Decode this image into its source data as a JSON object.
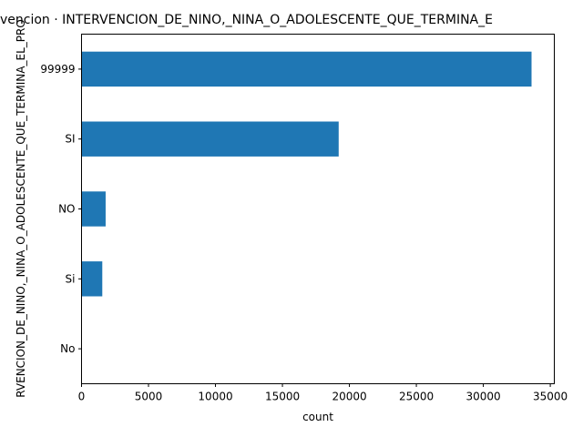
{
  "chart_data": {
    "type": "bar",
    "orientation": "horizontal",
    "title": "vencion · INTERVENCION_DE_NINO,_NINA_O_ADOLESCENTE_QUE_TERMINA_E",
    "xlabel": "count",
    "ylabel": "RVENCION_DE_NINO,_NINA_O_ADOLESCENTE_QUE_TERMINA_EL_PRO",
    "categories": [
      "99999",
      "SI",
      "NO",
      "Si",
      "No"
    ],
    "values": [
      33600,
      19200,
      1800,
      1550,
      20
    ],
    "xlim": [
      0,
      35300
    ],
    "xticks": [
      0,
      5000,
      10000,
      15000,
      20000,
      25000,
      30000,
      35000
    ],
    "xtick_labels": [
      "0",
      "5000",
      "10000",
      "15000",
      "20000",
      "25000",
      "30000",
      "35000"
    ],
    "bar_color": "#1f77b4",
    "grid": false,
    "legend": "none"
  }
}
